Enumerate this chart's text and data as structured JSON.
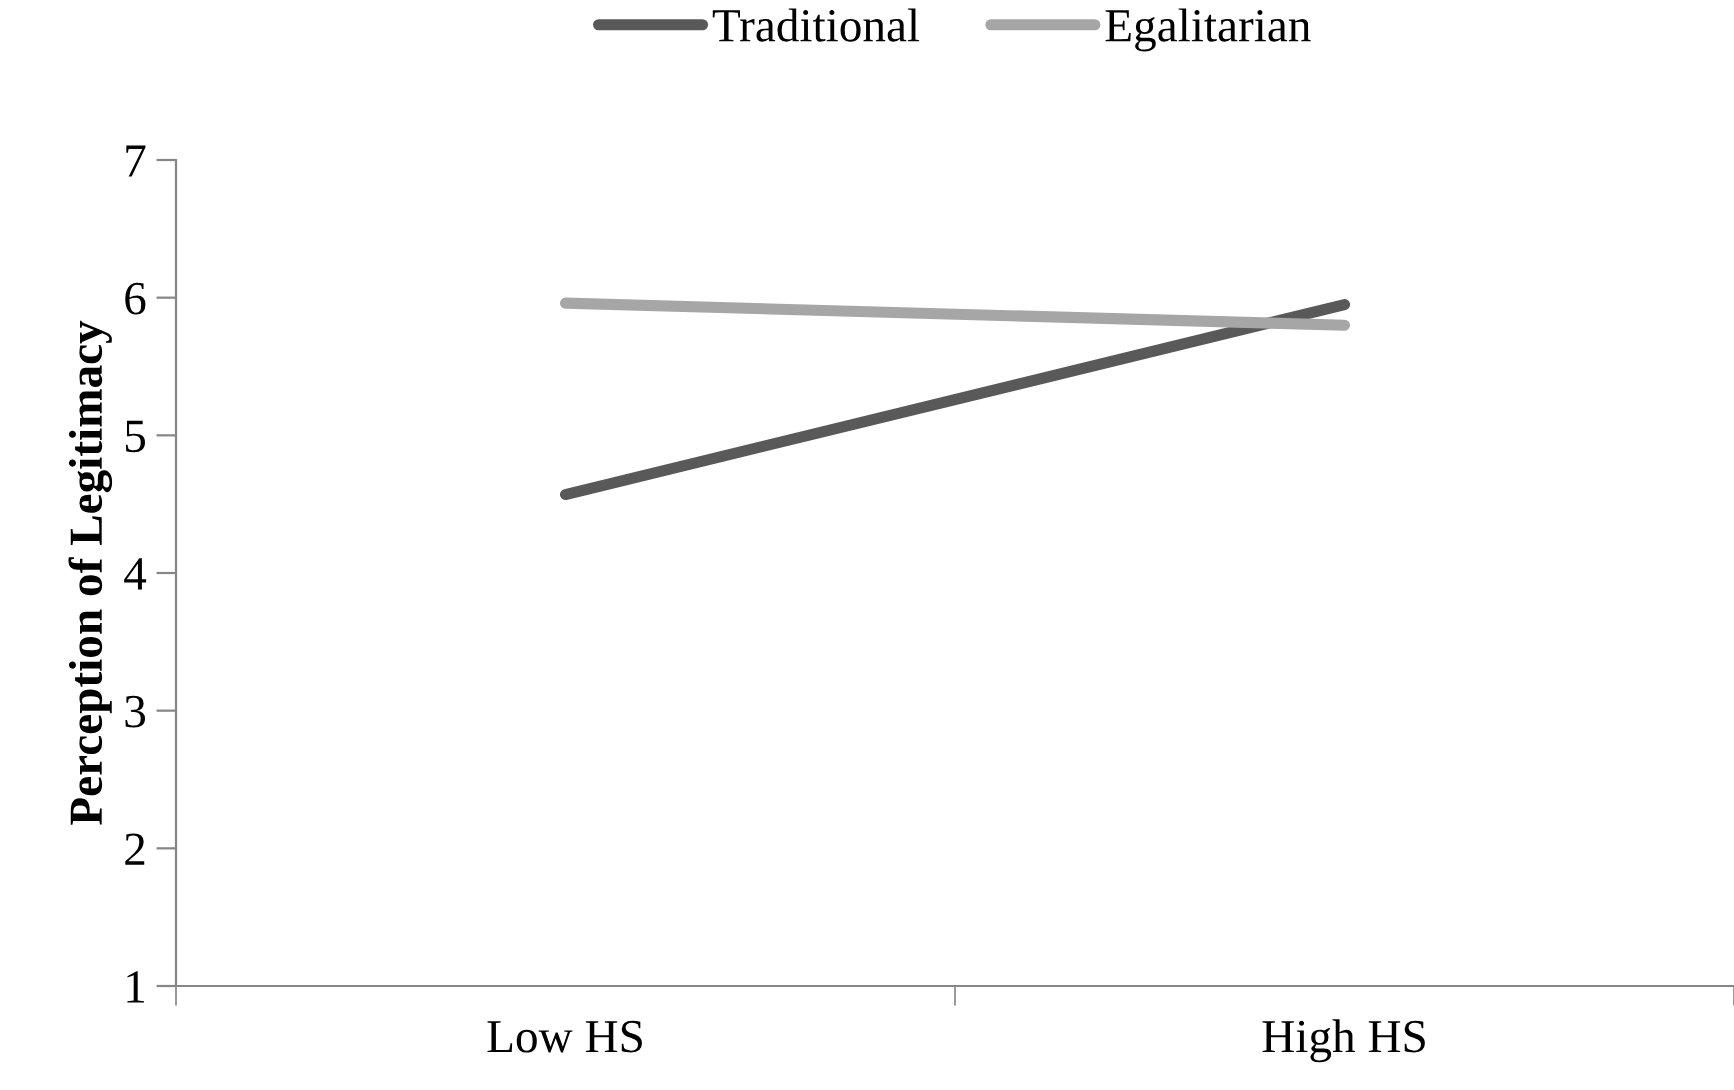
{
  "chart_data": {
    "type": "line",
    "ylabel": "Perception of Legitimacy",
    "categories": [
      "Low HS",
      "High HS"
    ],
    "series": [
      {
        "name": "Traditional",
        "color": "#595959",
        "values": [
          4.57,
          5.95
        ]
      },
      {
        "name": "Egalitarian",
        "color": "#a6a6a6",
        "values": [
          5.96,
          5.8
        ]
      }
    ],
    "ylim": [
      1,
      7
    ],
    "yticks": [
      1,
      2,
      3,
      4,
      5,
      6,
      7
    ],
    "grid": false,
    "legend": "top",
    "marker": "none",
    "line_style": "solid"
  }
}
